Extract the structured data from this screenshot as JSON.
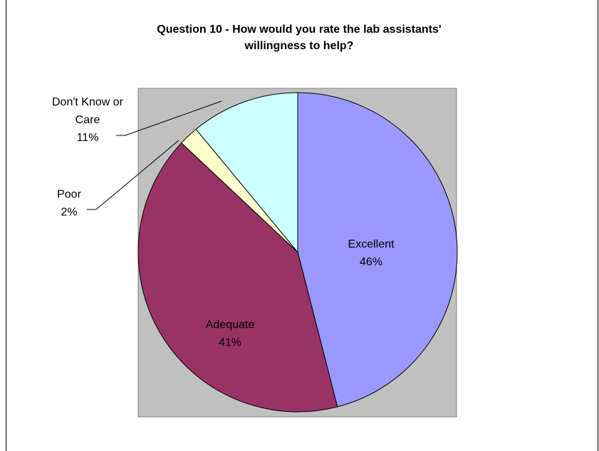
{
  "chart_data": {
    "type": "pie",
    "title_lines": [
      "Question 10 - How would you rate the lab assistants'",
      "willingness to help?"
    ],
    "slices": [
      {
        "label": "Excellent",
        "label_lines": [
          "Excellent"
        ],
        "value": 46,
        "pct_text": "46%",
        "color": "#9999ff"
      },
      {
        "label": "Adequate",
        "label_lines": [
          "Adequate"
        ],
        "value": 41,
        "pct_text": "41%",
        "color": "#993366"
      },
      {
        "label": "Poor",
        "label_lines": [
          "Poor"
        ],
        "value": 2,
        "pct_text": "2%",
        "color": "#ffffcc"
      },
      {
        "label": "Don't Know or Care",
        "label_lines": [
          "Don't Know  or",
          "Care"
        ],
        "value": 11,
        "pct_text": "11%",
        "color": "#ccffff"
      }
    ],
    "plot_background": "#c0c0c0",
    "legend": "none"
  }
}
